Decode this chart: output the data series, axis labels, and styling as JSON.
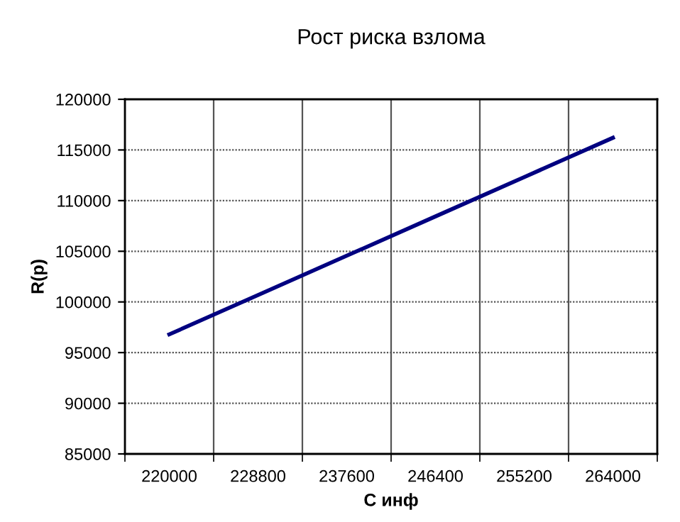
{
  "chart_data": {
    "type": "line",
    "title": "Рост риска взлома",
    "xlabel": "С инф",
    "ylabel": "R(p)",
    "categories": [
      "220000",
      "228800",
      "237600",
      "246400",
      "255200",
      "264000"
    ],
    "series": [
      {
        "color": "#000080",
        "values": [
          96800,
          100680,
          104560,
          108440,
          112320,
          116200
        ]
      }
    ],
    "ylim": [
      85000,
      120000
    ],
    "yticks": [
      85000,
      90000,
      95000,
      100000,
      105000,
      110000,
      115000,
      120000
    ],
    "grid": true,
    "legend": false,
    "marker": "none",
    "line_style": "solid"
  }
}
